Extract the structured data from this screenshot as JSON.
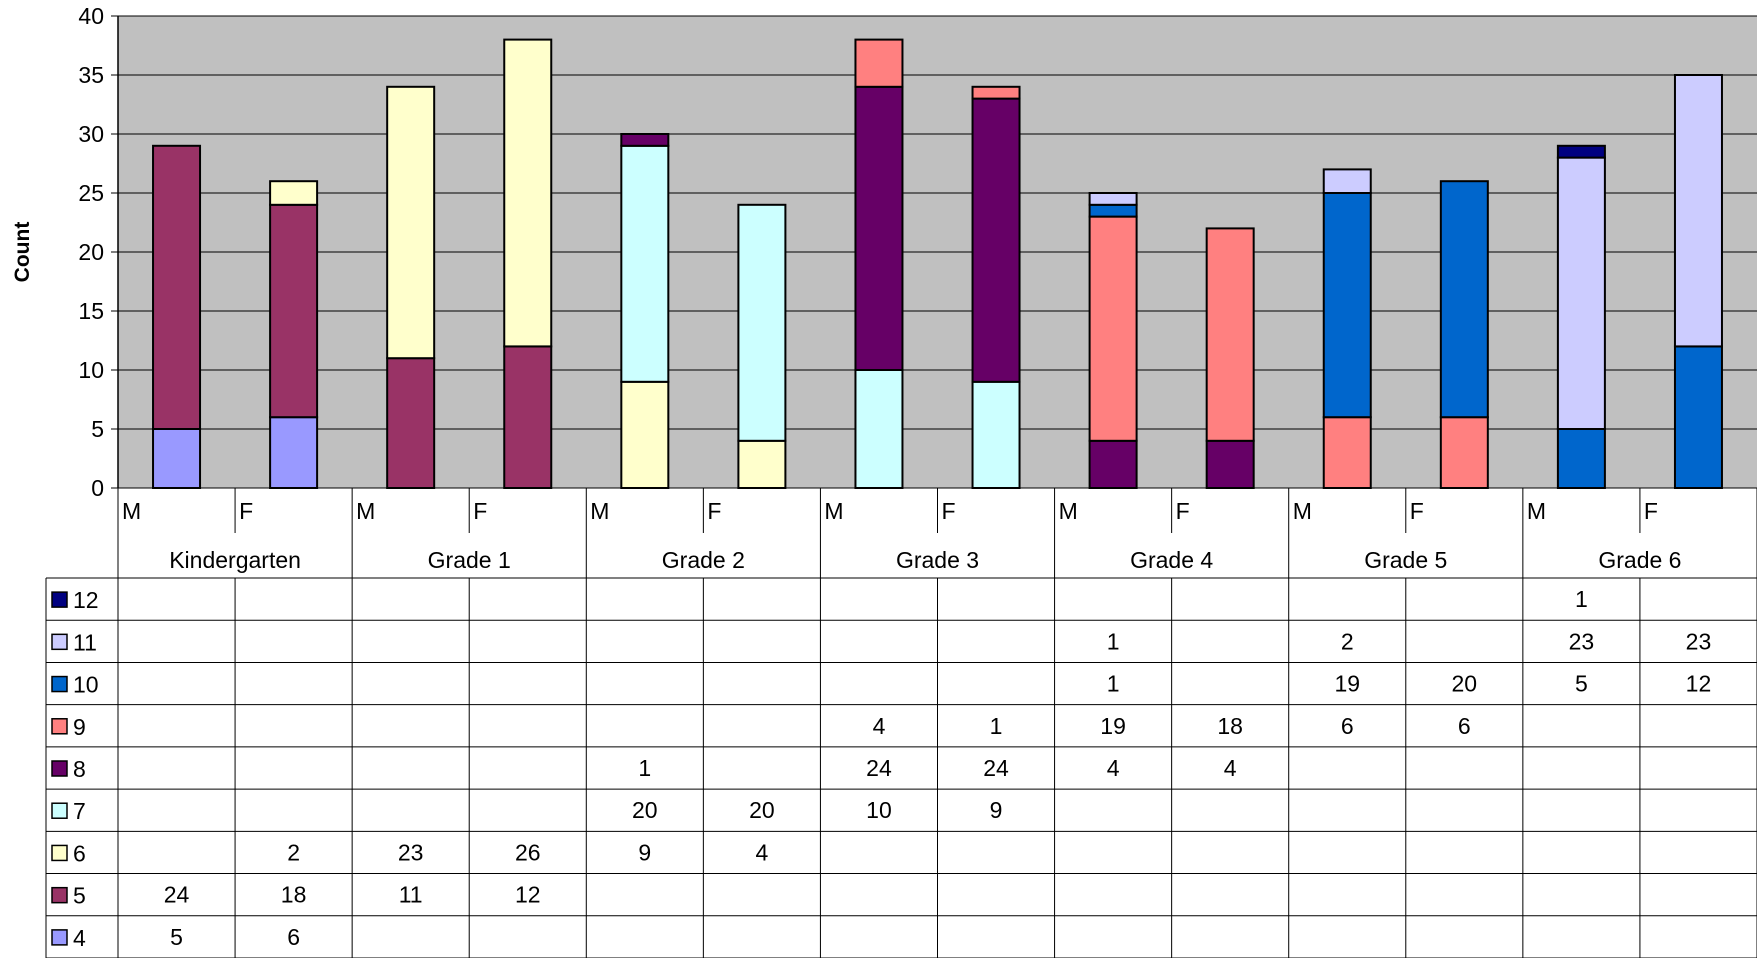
{
  "chart_data": {
    "type": "bar",
    "stacked": true,
    "ylabel": "Count",
    "xlabel": "",
    "ylim": [
      0,
      40
    ],
    "yticks": [
      0,
      5,
      10,
      15,
      20,
      25,
      30,
      35,
      40
    ],
    "grid": true,
    "plot_background": "#C0C0C0",
    "legend_placement": "left of data table",
    "groups": [
      "Kindergarten",
      "Grade 1",
      "Grade 2",
      "Grade 3",
      "Grade 4",
      "Grade 5",
      "Grade 6"
    ],
    "subcategories": [
      "M",
      "F",
      "M",
      "F",
      "M",
      "F",
      "M",
      "F",
      "M",
      "F",
      "M",
      "F",
      "M",
      "F"
    ],
    "series": [
      {
        "name": "4",
        "color": "#9999FF",
        "values": [
          5,
          6,
          null,
          null,
          null,
          null,
          null,
          null,
          null,
          null,
          null,
          null,
          null,
          null
        ]
      },
      {
        "name": "5",
        "color": "#993366",
        "values": [
          24,
          18,
          11,
          12,
          null,
          null,
          null,
          null,
          null,
          null,
          null,
          null,
          null,
          null
        ]
      },
      {
        "name": "6",
        "color": "#FFFFCC",
        "values": [
          null,
          2,
          23,
          26,
          9,
          4,
          null,
          null,
          null,
          null,
          null,
          null,
          null,
          null
        ]
      },
      {
        "name": "7",
        "color": "#CCFFFF",
        "values": [
          null,
          null,
          null,
          null,
          20,
          20,
          10,
          9,
          null,
          null,
          null,
          null,
          null,
          null
        ]
      },
      {
        "name": "8",
        "color": "#660066",
        "values": [
          null,
          null,
          null,
          null,
          1,
          null,
          24,
          24,
          4,
          4,
          null,
          null,
          null,
          null
        ]
      },
      {
        "name": "9",
        "color": "#FF8080",
        "values": [
          null,
          null,
          null,
          null,
          null,
          null,
          4,
          1,
          19,
          18,
          6,
          6,
          null,
          null
        ]
      },
      {
        "name": "10",
        "color": "#0066CC",
        "values": [
          null,
          null,
          null,
          null,
          null,
          null,
          null,
          null,
          1,
          null,
          19,
          20,
          5,
          12
        ]
      },
      {
        "name": "11",
        "color": "#CCCCFF",
        "values": [
          null,
          null,
          null,
          null,
          null,
          null,
          null,
          null,
          1,
          null,
          2,
          null,
          23,
          23
        ]
      },
      {
        "name": "12",
        "color": "#000080",
        "values": [
          null,
          null,
          null,
          null,
          null,
          null,
          null,
          null,
          null,
          null,
          null,
          null,
          1,
          null
        ]
      }
    ]
  }
}
